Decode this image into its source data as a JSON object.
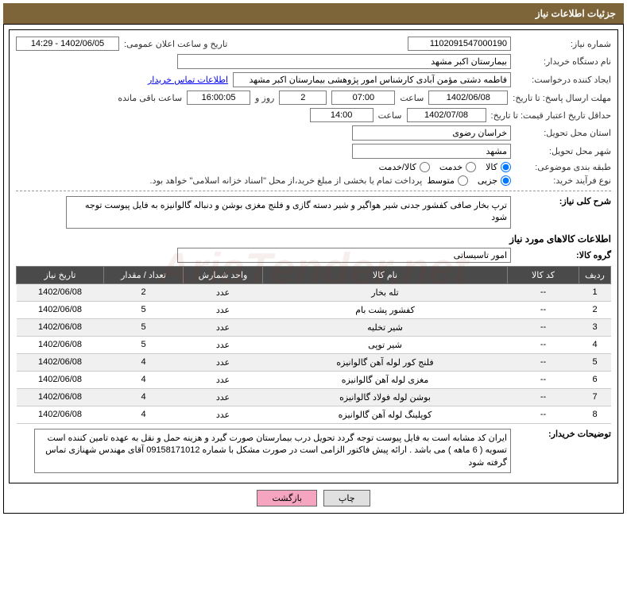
{
  "header": {
    "title": "جزئیات اطلاعات نیاز"
  },
  "form": {
    "need_no_label": "شماره نیاز:",
    "need_no": "1102091547000190",
    "announce_label": "تاریخ و ساعت اعلان عمومی:",
    "announce_value": "1402/06/05 - 14:29",
    "buyer_org_label": "نام دستگاه خریدار:",
    "buyer_org": "بیمارستان اکبر مشهد",
    "requester_label": "ایجاد کننده درخواست:",
    "requester": "فاطمه دشتی مؤمن آبادی کارشناس امور پژوهشی بیمارستان اکبر مشهد",
    "buyer_contact_link": "اطلاعات تماس خریدار",
    "reply_deadline_label": "مهلت ارسال پاسخ: تا تاریخ:",
    "reply_date": "1402/06/08",
    "time_label": "ساعت",
    "reply_time": "07:00",
    "days": "2",
    "days_label": "روز و",
    "remaining_time": "16:00:05",
    "remaining_label": "ساعت باقی مانده",
    "price_valid_label": "حداقل تاریخ اعتبار قیمت: تا تاریخ:",
    "price_date": "1402/07/08",
    "price_time": "14:00",
    "province_label": "استان محل تحویل:",
    "province": "خراسان رضوی",
    "city_label": "شهر محل تحویل:",
    "city": "مشهد",
    "category_label": "طبقه بندی موضوعی:",
    "radio_goods": "کالا",
    "radio_service": "خدمت",
    "radio_both": "کالا/خدمت",
    "process_label": "نوع فرآیند خرید:",
    "radio_minor": "جزیی",
    "radio_medium": "متوسط",
    "process_note": "پرداخت تمام یا بخشی از مبلغ خرید،از محل \"اسناد خزانه اسلامی\" خواهد بود.",
    "desc_label": "شرح کلی نیاز:",
    "desc_text": "ترپ بخار صافی کفشور جدنی شیر هواگیر و شیر دسته گازی و فلنج مغزی بوشن و دنباله گالوانیزه  به فایل پیوست توجه شود",
    "items_title": "اطلاعات کالاهای مورد نیاز",
    "group_label": "گروه کالا:",
    "group_value": "امور تاسیساتی",
    "buyer_notes_label": "توضیحات خریدار:",
    "buyer_notes": "ایران کد مشابه است به فایل پیوست توجه گردد تحویل درب بیمارستان صورت گیرد و هزینه حمل و نقل به عهده تامین کننده است  تسویه ( 6 ماهه ) می باشد . ارائه پیش فاکتور الزامی است در صورت مشکل با شماره  09158171012 آقای مهندس شهنازی تماس گرفته شود"
  },
  "table": {
    "columns": [
      "ردیف",
      "کد کالا",
      "نام کالا",
      "واحد شمارش",
      "تعداد / مقدار",
      "تاریخ نیاز"
    ],
    "rows": [
      [
        "1",
        "--",
        "تله بخار",
        "عدد",
        "2",
        "1402/06/08"
      ],
      [
        "2",
        "--",
        "کفشور پشت بام",
        "عدد",
        "5",
        "1402/06/08"
      ],
      [
        "3",
        "--",
        "شیر تخلیه",
        "عدد",
        "5",
        "1402/06/08"
      ],
      [
        "4",
        "--",
        "شیر توپی",
        "عدد",
        "5",
        "1402/06/08"
      ],
      [
        "5",
        "--",
        "فلنج کور لوله آهن گالوانیزه",
        "عدد",
        "4",
        "1402/06/08"
      ],
      [
        "6",
        "--",
        "مغزی لوله آهن گالوانیزه",
        "عدد",
        "4",
        "1402/06/08"
      ],
      [
        "7",
        "--",
        "بوشن لوله فولاد گالوانیزه",
        "عدد",
        "4",
        "1402/06/08"
      ],
      [
        "8",
        "--",
        "کوپلینگ لوله آهن گالوانیزه",
        "عدد",
        "4",
        "1402/06/08"
      ]
    ]
  },
  "buttons": {
    "print": "چاپ",
    "back": "بازگشت"
  },
  "watermark": "AriaTender.net",
  "styles": {
    "header_bg": "#7d6439",
    "header_fg": "#ffffff",
    "th_bg": "#4a4a4a",
    "th_fg": "#ffffff",
    "row_alt_bg": "#f0f0f0",
    "border": "#000000",
    "input_border": "#7d7d7d",
    "link": "#0000ee",
    "back_btn_bg": "#f5a5c0",
    "font_size": 11
  }
}
